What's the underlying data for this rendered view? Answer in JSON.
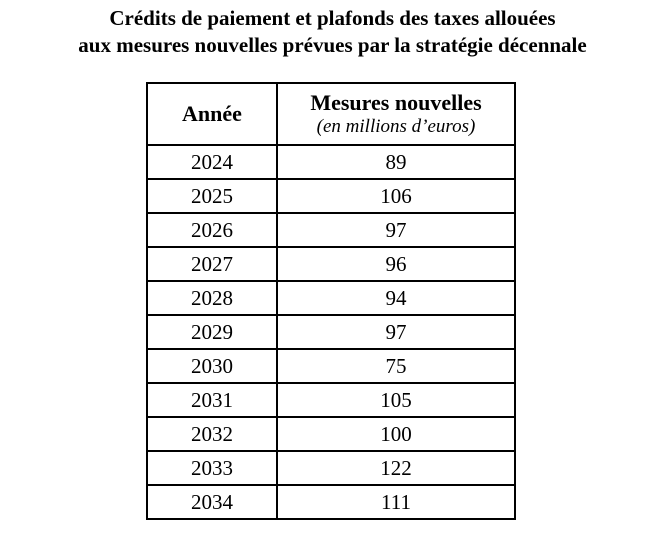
{
  "title": {
    "line1": "Crédits de paiement et plafonds des taxes allouées",
    "line2": "aux mesures nouvelles prévues par la stratégie décennale"
  },
  "table": {
    "columns": {
      "annee": "Année",
      "mesures_main": "Mesures nouvelles",
      "mesures_sub": "(en millions d’euros)"
    },
    "rows": [
      {
        "annee": "2024",
        "valeur": "89"
      },
      {
        "annee": "2025",
        "valeur": "106"
      },
      {
        "annee": "2026",
        "valeur": "97"
      },
      {
        "annee": "2027",
        "valeur": "96"
      },
      {
        "annee": "2028",
        "valeur": "94"
      },
      {
        "annee": "2029",
        "valeur": "97"
      },
      {
        "annee": "2030",
        "valeur": "75"
      },
      {
        "annee": "2031",
        "valeur": "105"
      },
      {
        "annee": "2032",
        "valeur": "100"
      },
      {
        "annee": "2033",
        "valeur": "122"
      },
      {
        "annee": "2034",
        "valeur": "111"
      }
    ]
  },
  "colors": {
    "text": "#000000",
    "border": "#000000",
    "background": "#ffffff"
  },
  "chart_data": {
    "type": "table",
    "categories": [
      "2024",
      "2025",
      "2026",
      "2027",
      "2028",
      "2029",
      "2030",
      "2031",
      "2032",
      "2033",
      "2034"
    ],
    "values": [
      89,
      106,
      97,
      96,
      94,
      97,
      75,
      105,
      100,
      122,
      111
    ],
    "title": "Crédits de paiement et plafonds des taxes allouées aux mesures nouvelles prévues par la stratégie décennale",
    "xlabel": "Année",
    "ylabel": "Mesures nouvelles (en millions d’euros)"
  }
}
